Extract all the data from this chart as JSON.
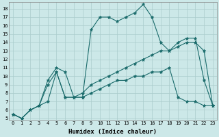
{
  "title": "",
  "xlabel": "Humidex (Indice chaleur)",
  "background_color": "#cce8e8",
  "grid_color": "#aacccc",
  "line_color": "#1a6b6b",
  "xlim": [
    -0.5,
    23.5
  ],
  "ylim": [
    4.8,
    18.8
  ],
  "xticks": [
    0,
    1,
    2,
    3,
    4,
    5,
    6,
    7,
    8,
    9,
    10,
    11,
    12,
    13,
    14,
    15,
    16,
    17,
    18,
    19,
    20,
    21,
    22,
    23
  ],
  "yticks": [
    5,
    6,
    7,
    8,
    9,
    10,
    11,
    12,
    13,
    14,
    15,
    16,
    17,
    18
  ],
  "series": [
    [
      5.5,
      5.0,
      6.0,
      6.5,
      9.5,
      11.0,
      10.5,
      7.5,
      7.5,
      15.5,
      17.0,
      17.0,
      16.5,
      17.0,
      17.5,
      18.5,
      17.0,
      14.0,
      13.0,
      14.0,
      14.5,
      14.5,
      9.5,
      6.5
    ],
    [
      5.5,
      5.0,
      6.0,
      6.5,
      9.0,
      10.5,
      7.5,
      7.5,
      8.0,
      9.0,
      9.5,
      10.0,
      10.5,
      11.0,
      11.5,
      12.0,
      12.5,
      13.0,
      13.0,
      13.5,
      14.0,
      14.0,
      13.0,
      6.5
    ],
    [
      5.5,
      5.0,
      6.0,
      6.5,
      7.0,
      10.5,
      7.5,
      7.5,
      7.5,
      8.0,
      8.5,
      9.0,
      9.5,
      9.5,
      10.0,
      10.0,
      10.5,
      10.5,
      11.0,
      7.5,
      7.0,
      7.0,
      6.5,
      6.5
    ]
  ],
  "tick_fontsize": 5.0,
  "xlabel_fontsize": 6.5
}
